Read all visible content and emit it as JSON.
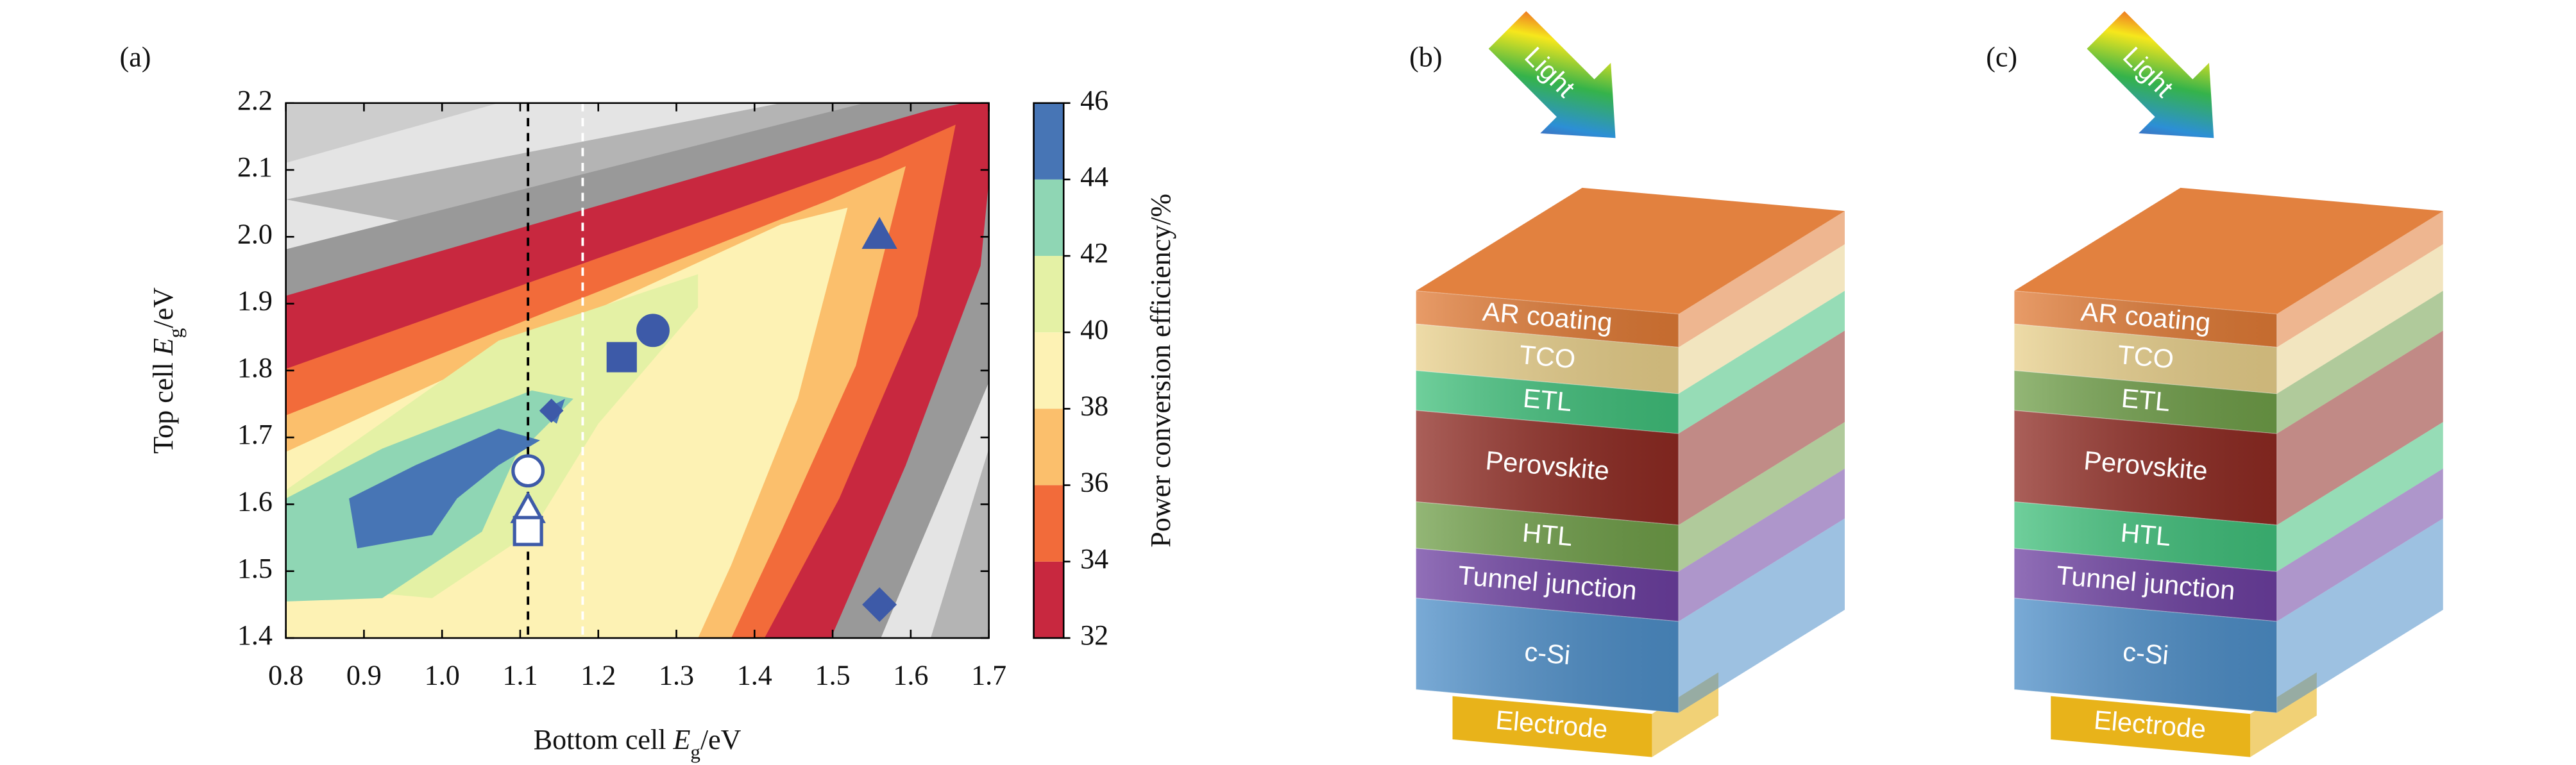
{
  "chart_data": {
    "type": "contour",
    "panel": "(a)",
    "xlabel": {
      "prefix": "Bottom cell ",
      "symbol": "E",
      "sub": "g",
      "suffix": "/eV"
    },
    "ylabel": {
      "prefix": "Top cell ",
      "symbol": "E",
      "sub": "g",
      "suffix": "/eV"
    },
    "xlim": [
      0.8,
      1.7
    ],
    "ylim": [
      1.4,
      2.2
    ],
    "xticks": [
      0.8,
      0.9,
      {
        "value": 1,
        "label": "1.0"
      },
      1.1,
      1.2,
      1.3,
      1.4,
      1.5,
      1.6,
      1.7
    ],
    "yticks": [
      1.4,
      1.5,
      1.6,
      1.7,
      1.8,
      1.9,
      {
        "value": 2,
        "label": "2.0"
      },
      2.1,
      2.2
    ],
    "colorbar": {
      "label": "Power conversion efficiency/%",
      "lim": [
        32,
        46
      ],
      "ticks": [
        32,
        34,
        36,
        38,
        40,
        42,
        44,
        46
      ],
      "colors": [
        "#c8283f",
        "#f26b3a",
        "#fbbf6c",
        "#fdf2b4",
        "#e4f1a5",
        "#8fd6b4",
        "#4775b5"
      ]
    },
    "vlines": [
      {
        "x": 1.11,
        "color": "#000000"
      },
      {
        "x": 1.18,
        "color": "#ffffff"
      }
    ],
    "points": {
      "x": [
        1.11,
        1.11,
        1.11,
        1.23,
        1.27,
        1.56,
        1.56,
        1.14
      ],
      "y": [
        1.65,
        1.59,
        1.56,
        1.82,
        1.86,
        2.0,
        1.45,
        1.74
      ],
      "markers": [
        "circle",
        "triangle",
        "square",
        "square",
        "circle",
        "triangle",
        "diamond",
        "diamond"
      ],
      "filled": [
        false,
        false,
        false,
        true,
        true,
        true,
        true,
        true
      ]
    },
    "color": "#3d5aa8"
  },
  "diagrams": [
    {
      "label": "(b)",
      "arrow": "Light",
      "layers": [
        {
          "name": "AR coating",
          "color": "#e07a35"
        },
        {
          "name": "TCO",
          "color": "#e8cf8a"
        },
        {
          "name": "ETL",
          "color": "#3fbf7a"
        },
        {
          "name": "Perovskite",
          "color": "#8e2a22"
        },
        {
          "name": "HTL",
          "color": "#6f9e48"
        },
        {
          "name": "Tunnel junction",
          "color": "#6c3fa0"
        },
        {
          "name": "c-Si",
          "color": "#4d8ec8"
        }
      ],
      "electrode": {
        "name": "Electrode",
        "color": "#e8b31a"
      }
    },
    {
      "label": "(c)",
      "arrow": "Light",
      "layers": [
        {
          "name": "AR coating",
          "color": "#e07a35"
        },
        {
          "name": "TCO",
          "color": "#e8cf8a"
        },
        {
          "name": "ETL",
          "color": "#6f9e48"
        },
        {
          "name": "Perovskite",
          "color": "#8e2a22"
        },
        {
          "name": "HTL",
          "color": "#3fbf7a"
        },
        {
          "name": "Tunnel junction",
          "color": "#6c3fa0"
        },
        {
          "name": "c-Si",
          "color": "#4d8ec8"
        }
      ],
      "electrode": {
        "name": "Electrode",
        "color": "#e8b31a"
      }
    }
  ]
}
